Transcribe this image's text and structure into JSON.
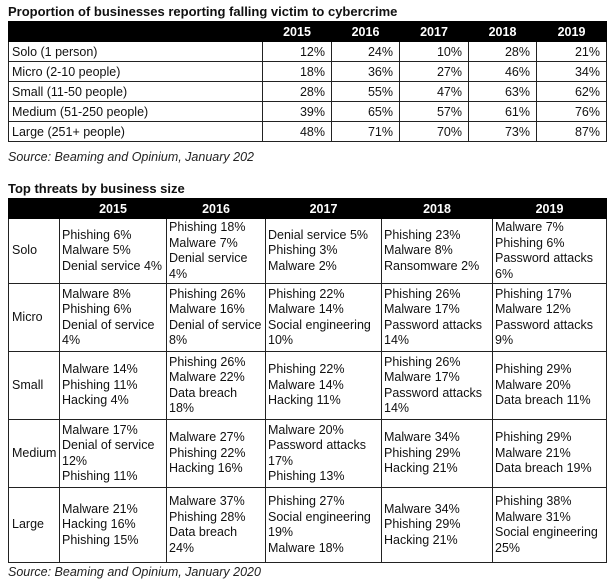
{
  "table1": {
    "title": "Proportion of businesses reporting falling victim to cybercrime",
    "columns": [
      "2015",
      "2016",
      "2017",
      "2018",
      "2019"
    ],
    "rows": [
      {
        "label": "Solo (1 person)",
        "values": [
          "12%",
          "24%",
          "10%",
          "28%",
          "21%"
        ]
      },
      {
        "label": "Micro (2-10 people)",
        "values": [
          "18%",
          "36%",
          "27%",
          "46%",
          "34%"
        ]
      },
      {
        "label": "Small (11-50 people)",
        "values": [
          "28%",
          "55%",
          "47%",
          "63%",
          "62%"
        ]
      },
      {
        "label": "Medium (51-250 people)",
        "values": [
          "39%",
          "65%",
          "57%",
          "61%",
          "76%"
        ]
      },
      {
        "label": "Large (251+ people)",
        "values": [
          "48%",
          "71%",
          "70%",
          "73%",
          "87%"
        ]
      }
    ],
    "source": "Source: Beaming and Opinium, January 202"
  },
  "table2": {
    "title": "Top threats by business size",
    "columns": [
      "2015",
      "2016",
      "2017",
      "2018",
      "2019"
    ],
    "rows": [
      {
        "label": "Solo",
        "cells": [
          [
            "Phishing 6%",
            "Malware 5%",
            "Denial service 4%"
          ],
          [
            "Phishing 18%",
            "Malware 7%",
            "Denial service 4%"
          ],
          [
            "Denial service 5%",
            "Phishing 3%",
            "Malware 2%"
          ],
          [
            "Phishing 23%",
            "Malware 8%",
            "Ransomware 2%"
          ],
          [
            "Malware 7%",
            "Phishing 6%",
            "Password attacks 6%"
          ]
        ]
      },
      {
        "label": "Micro",
        "cells": [
          [
            "Malware 8%",
            "Phishing 6%",
            "Denial of service 4%"
          ],
          [
            "Phishing 26%",
            "Malware 16%",
            "Denial of service 8%"
          ],
          [
            "Phishing 22%",
            "Malware 14%",
            "Social engineering 10%"
          ],
          [
            "Phishing 26%",
            "Malware 17%",
            "Password attacks 14%"
          ],
          [
            "Phishing 17%",
            "Malware 12%",
            "Password attacks 9%"
          ]
        ]
      },
      {
        "label": "Small",
        "cells": [
          [
            "Malware 14%",
            "Phishing 11%",
            "Hacking 4%"
          ],
          [
            "Phishing 26%",
            "Malware 22%",
            "Data breach 18%"
          ],
          [
            "Phishing 22%",
            "Malware 14%",
            "Hacking 11%"
          ],
          [
            "Phishing 26%",
            "Malware 17%",
            "Password attacks 14%"
          ],
          [
            "Phishing 29%",
            "Malware 20%",
            "Data breach 11%"
          ]
        ]
      },
      {
        "label": "Medium",
        "cells": [
          [
            "Malware 17%",
            "Denial of service 12%",
            "Phishing 11%"
          ],
          [
            "Malware 27%",
            "Phishing 22%",
            "Hacking 16%"
          ],
          [
            "Malware 20%",
            "Password attacks 17%",
            "Phishing 13%"
          ],
          [
            "Malware 34%",
            "Phishing 29%",
            "Hacking 21%"
          ],
          [
            "Phishing 29%",
            "Malware 21%",
            "Data breach 19%"
          ]
        ]
      },
      {
        "label": "Large",
        "cells": [
          [
            "Malware 21%",
            "Hacking 16%",
            "Phishing 15%"
          ],
          [
            "Malware 37%",
            "Phishing 28%",
            "Data breach 24%"
          ],
          [
            "Phishing 27%",
            "Social engineering 19%",
            "Malware 18%"
          ],
          [
            "Malware 34%",
            "Phishing 29%",
            "Hacking 21%"
          ],
          [
            "Phishing 38%",
            "Malware 31%",
            "Social engineering 25%"
          ]
        ]
      }
    ],
    "source": "Source: Beaming and Opinium, January 2020"
  }
}
